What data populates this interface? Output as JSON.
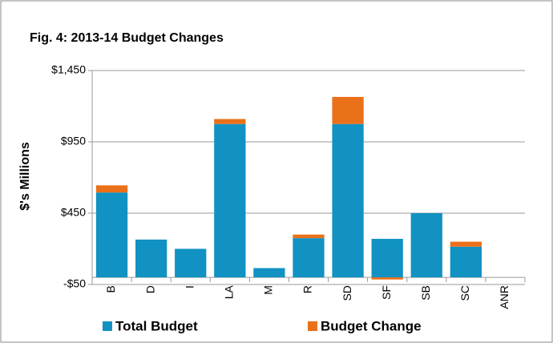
{
  "chart_data": {
    "type": "stacked_bar",
    "title": "Fig. 4: 2013-14 Budget Changes",
    "y_label": "$'s Millions",
    "categories": [
      "B",
      "D",
      "I",
      "LA",
      "M",
      "R",
      "SD",
      "SF",
      "SB",
      "SC",
      "ANR"
    ],
    "series": [
      {
        "name": "Total Budget",
        "color": "#1192c3",
        "values": [
          595,
          265,
          200,
          1075,
          65,
          275,
          1075,
          270,
          450,
          215,
          0
        ]
      },
      {
        "name": "Budget Change",
        "color": "#ea7119",
        "values": [
          50,
          0,
          0,
          35,
          0,
          25,
          190,
          -15,
          0,
          35,
          0
        ]
      }
    ],
    "ylim": [
      -50,
      1450
    ],
    "yticks": [
      {
        "value": -50,
        "label": "-$50"
      },
      {
        "value": 450,
        "label": "$450"
      },
      {
        "value": 950,
        "label": "$950"
      },
      {
        "value": 1450,
        "label": "$1,450"
      }
    ],
    "grid": true,
    "legend": "bottom"
  }
}
